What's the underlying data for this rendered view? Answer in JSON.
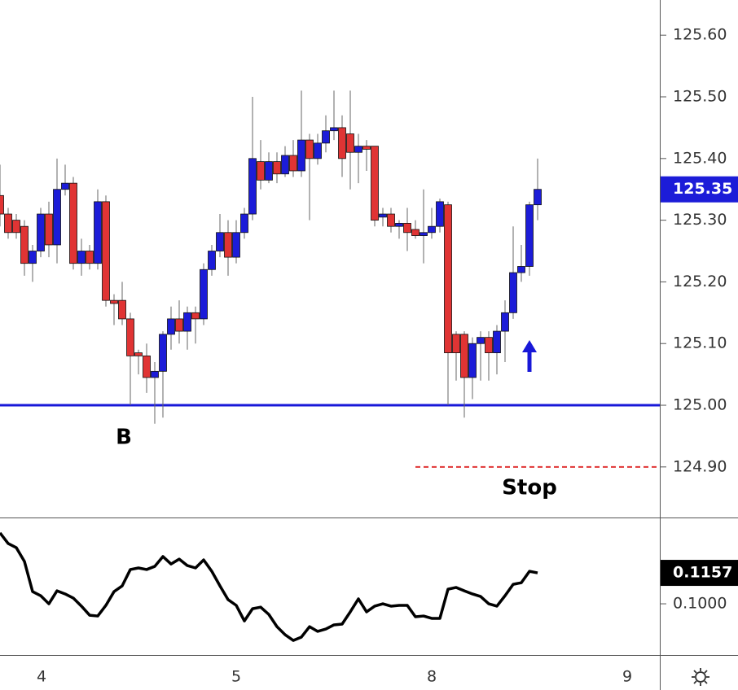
{
  "chart_data": [
    {
      "type": "candlestick",
      "x": [
        0,
        1,
        2,
        3,
        4,
        5,
        6,
        7,
        8,
        9,
        10,
        11,
        12,
        13,
        14,
        15,
        16,
        17,
        18,
        19,
        20,
        21,
        22,
        23,
        24,
        25,
        26,
        27,
        28,
        29,
        30,
        31,
        32,
        33,
        34,
        35,
        36,
        37,
        38,
        39,
        40,
        41,
        42,
        43,
        44,
        45,
        46,
        47,
        48,
        49,
        50,
        51,
        52,
        53,
        54,
        55,
        56,
        57,
        58,
        59,
        60,
        61,
        62,
        63,
        64,
        65,
        66
      ],
      "open": [
        125.34,
        125.31,
        125.3,
        125.29,
        125.23,
        125.25,
        125.31,
        125.26,
        125.35,
        125.36,
        125.23,
        125.25,
        125.23,
        125.33,
        125.17,
        125.17,
        125.14,
        125.085,
        125.08,
        125.045,
        125.055,
        125.115,
        125.14,
        125.12,
        125.15,
        125.14,
        125.22,
        125.25,
        125.28,
        125.24,
        125.28,
        125.31,
        125.395,
        125.365,
        125.395,
        125.375,
        125.405,
        125.38,
        125.43,
        125.4,
        125.425,
        125.445,
        125.45,
        125.44,
        125.41,
        125.42,
        125.42,
        125.305,
        125.31,
        125.29,
        125.295,
        125.285,
        125.275,
        125.28,
        125.29,
        125.325,
        125.115,
        125.115,
        125.045,
        125.1,
        125.11,
        125.085,
        125.12,
        125.15,
        125.215,
        125.225,
        125.325
      ],
      "high": [
        125.39,
        125.32,
        125.31,
        125.3,
        125.26,
        125.32,
        125.33,
        125.4,
        125.39,
        125.37,
        125.27,
        125.26,
        125.35,
        125.34,
        125.18,
        125.2,
        125.15,
        125.09,
        125.1,
        125.07,
        125.12,
        125.16,
        125.17,
        125.16,
        125.16,
        125.23,
        125.26,
        125.31,
        125.3,
        125.3,
        125.32,
        125.5,
        125.43,
        125.41,
        125.41,
        125.42,
        125.43,
        125.51,
        125.44,
        125.44,
        125.47,
        125.51,
        125.47,
        125.51,
        125.44,
        125.43,
        125.42,
        125.32,
        125.32,
        125.3,
        125.32,
        125.3,
        125.35,
        125.32,
        125.335,
        125.33,
        125.12,
        125.12,
        125.11,
        125.12,
        125.12,
        125.13,
        125.17,
        125.29,
        125.26,
        125.33,
        125.4
      ],
      "low": [
        125.29,
        125.27,
        125.27,
        125.21,
        125.2,
        125.24,
        125.24,
        125.23,
        125.34,
        125.22,
        125.21,
        125.22,
        125.22,
        125.16,
        125.13,
        125.13,
        125.0,
        125.05,
        125.02,
        124.97,
        124.98,
        125.09,
        125.1,
        125.09,
        125.1,
        125.13,
        125.21,
        125.24,
        125.21,
        125.23,
        125.27,
        125.3,
        125.35,
        125.36,
        125.36,
        125.37,
        125.37,
        125.37,
        125.3,
        125.39,
        125.41,
        125.43,
        125.37,
        125.35,
        125.36,
        125.38,
        125.29,
        125.29,
        125.28,
        125.27,
        125.25,
        125.27,
        125.23,
        125.27,
        125.28,
        125.0,
        125.04,
        124.98,
        125.01,
        125.04,
        125.04,
        125.05,
        125.07,
        125.14,
        125.2,
        125.21,
        125.3
      ],
      "close": [
        125.31,
        125.28,
        125.28,
        125.23,
        125.25,
        125.31,
        125.26,
        125.35,
        125.36,
        125.23,
        125.25,
        125.23,
        125.33,
        125.17,
        125.165,
        125.14,
        125.08,
        125.08,
        125.045,
        125.055,
        125.115,
        125.14,
        125.12,
        125.15,
        125.14,
        125.22,
        125.25,
        125.28,
        125.24,
        125.28,
        125.31,
        125.4,
        125.365,
        125.395,
        125.375,
        125.405,
        125.38,
        125.43,
        125.4,
        125.425,
        125.445,
        125.45,
        125.4,
        125.41,
        125.42,
        125.415,
        125.3,
        125.31,
        125.29,
        125.295,
        125.28,
        125.275,
        125.28,
        125.29,
        125.33,
        125.085,
        125.085,
        125.045,
        125.1,
        125.11,
        125.085,
        125.12,
        125.15,
        125.215,
        125.225,
        125.325,
        125.35
      ],
      "up_color": "#1c1cd8",
      "down_color": "#e03434",
      "xlim": [
        0,
        81
      ],
      "ylim": [
        124.818,
        125.657
      ],
      "yticks": [
        {
          "value": 124.9,
          "label": "124.90"
        },
        {
          "value": 125.0,
          "label": "125.00"
        },
        {
          "value": 125.1,
          "label": "125.10"
        },
        {
          "value": 125.2,
          "label": "125.20"
        },
        {
          "value": 125.3,
          "label": "125.30"
        },
        {
          "value": 125.4,
          "label": "125.40"
        },
        {
          "value": 125.5,
          "label": "125.50"
        },
        {
          "value": 125.6,
          "label": "125.60"
        }
      ],
      "hlines": [
        {
          "value": 125.0,
          "color": "#1818d8"
        },
        {
          "value": 124.9,
          "color": "#e03434",
          "dashed": true
        }
      ],
      "annotations": [
        "B",
        "Stop"
      ]
    },
    {
      "type": "line",
      "x": [
        0,
        1,
        2,
        3,
        4,
        5,
        6,
        7,
        8,
        9,
        10,
        11,
        12,
        13,
        14,
        15,
        16,
        17,
        18,
        19,
        20,
        21,
        22,
        23,
        24,
        25,
        26,
        27,
        28,
        29,
        30,
        31,
        32,
        33,
        34,
        35,
        36,
        37,
        38,
        39,
        40,
        41,
        42,
        43,
        44,
        45,
        46,
        47,
        48,
        49,
        50,
        51,
        52,
        53,
        54,
        55,
        56,
        57,
        58,
        59,
        60,
        61,
        62,
        63,
        64,
        65,
        66
      ],
      "values": [
        0.136,
        0.1306,
        0.1285,
        0.1215,
        0.1062,
        0.1041,
        0.1,
        0.1066,
        0.105,
        0.1029,
        0.0988,
        0.0942,
        0.0938,
        0.0992,
        0.1062,
        0.1091,
        0.1174,
        0.1182,
        0.1174,
        0.119,
        0.124,
        0.1202,
        0.1227,
        0.1194,
        0.1182,
        0.1223,
        0.1165,
        0.1091,
        0.1021,
        0.0992,
        0.0913,
        0.0975,
        0.0983,
        0.0946,
        0.0884,
        0.0843,
        0.0814,
        0.0831,
        0.0884,
        0.086,
        0.0872,
        0.0893,
        0.0897,
        0.0959,
        0.1025,
        0.0959,
        0.0988,
        0.1,
        0.0988,
        0.0992,
        0.0992,
        0.0934,
        0.0938,
        0.0926,
        0.0926,
        0.1074,
        0.1083,
        0.1066,
        0.105,
        0.1037,
        0.1,
        0.0988,
        0.1041,
        0.1099,
        0.1107,
        0.1165,
        0.1157
      ],
      "color": "#000000",
      "xlim": [
        0,
        81
      ],
      "ylim": [
        0.074,
        0.1434
      ],
      "yticks": [
        {
          "value": 0.1,
          "label": "0.1000"
        }
      ],
      "xticks": [
        {
          "value": 5.1,
          "label": "4"
        },
        {
          "value": 29,
          "label": "5"
        },
        {
          "value": 53,
          "label": "8"
        },
        {
          "value": 77,
          "label": "9"
        }
      ]
    }
  ]
}
